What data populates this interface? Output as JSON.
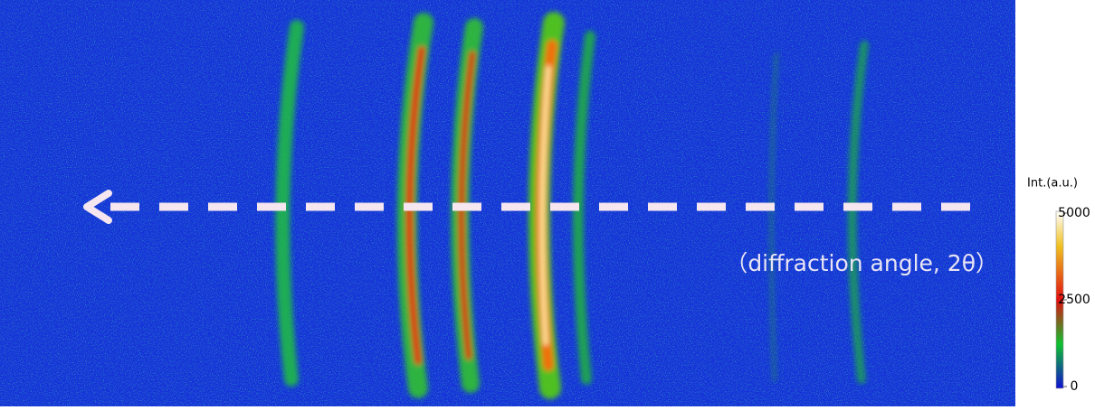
{
  "annotation": {
    "text": "（diffraction angle, 2θ）"
  },
  "colorbar": {
    "title": "Int.(a.u.)",
    "range": [
      0,
      5000
    ],
    "ticks": [
      5000,
      2500,
      0
    ]
  }
}
